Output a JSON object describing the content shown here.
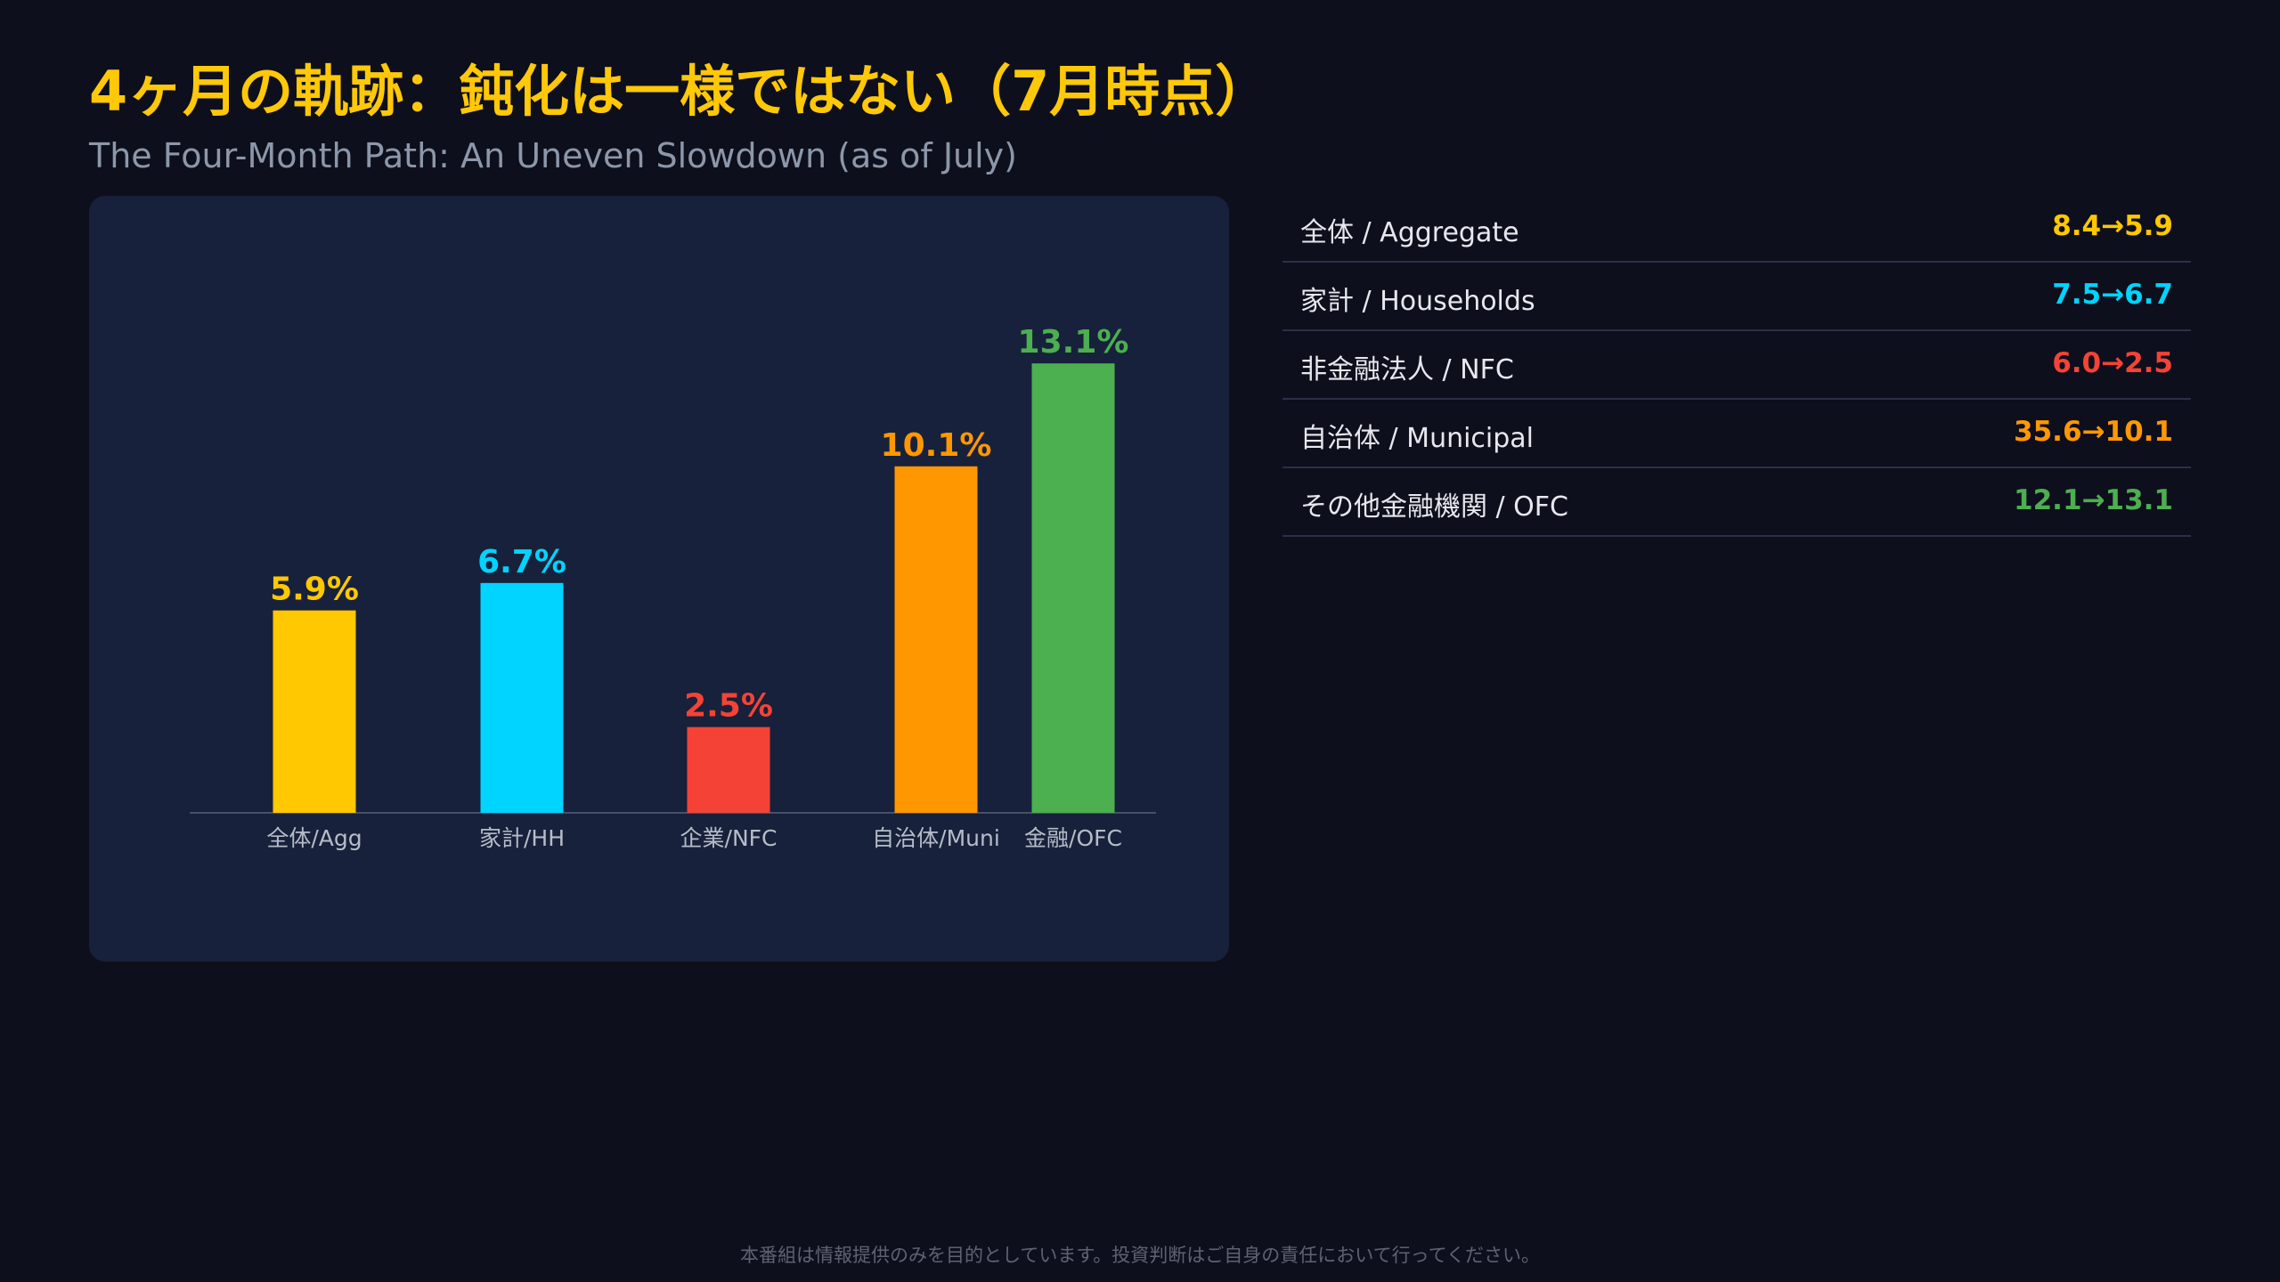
{
  "header": {
    "title": "4ヶ月の軌跡：鈍化は一様ではない（7月時点）",
    "subtitle": "The Four-Month Path: An Uneven Slowdown (as of July)"
  },
  "chart_data": {
    "type": "bar",
    "categories": [
      "全体/Agg",
      "家計/HH",
      "企業/NFC",
      "自治体/Muni",
      "金融/OFC"
    ],
    "values": [
      5.9,
      6.7,
      2.5,
      10.1,
      13.1
    ],
    "value_labels": [
      "5.9%",
      "6.7%",
      "2.5%",
      "10.1%",
      "13.1%"
    ],
    "colors": [
      "#ffc800",
      "#00d4ff",
      "#f44336",
      "#ff9800",
      "#4caf50"
    ],
    "ylim": [
      0,
      15
    ],
    "grid": false,
    "title": "",
    "xlabel": "",
    "ylabel": ""
  },
  "summary": {
    "rows": [
      {
        "label": "全体 / Aggregate",
        "value": "8.4→5.9",
        "color": "#ffc800"
      },
      {
        "label": "家計 / Households",
        "value": "7.5→6.7",
        "color": "#00d4ff"
      },
      {
        "label": "非金融法人 / NFC",
        "value": "6.0→2.5",
        "color": "#f44336"
      },
      {
        "label": "自治体 / Municipal",
        "value": "35.6→10.1",
        "color": "#ff9800"
      },
      {
        "label": "その他金融機関 / OFC",
        "value": "12.1→13.1",
        "color": "#4caf50"
      }
    ]
  },
  "footer": {
    "disclaimer": "本番組は情報提供のみを目的としています。投資判断はご自身の責任において行ってください。"
  }
}
